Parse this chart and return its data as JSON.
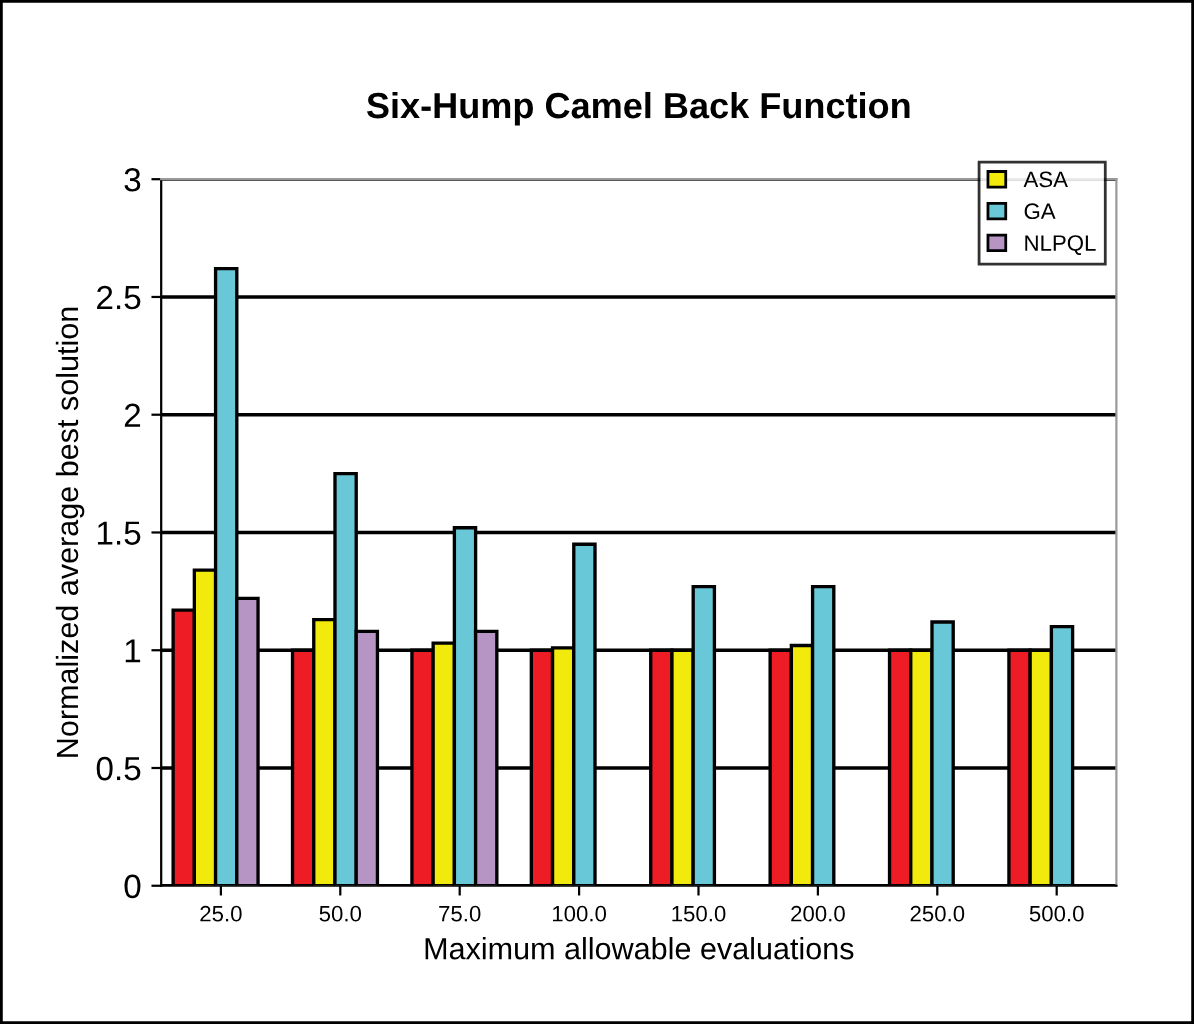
{
  "chart_data": {
    "type": "bar",
    "title": "Six-Hump Camel Back Function",
    "xlabel": "Maximum allowable evaluations",
    "ylabel": "Normalized average best solution",
    "categories": [
      "25.0",
      "50.0",
      "75.0",
      "100.0",
      "150.0",
      "200.0",
      "250.0",
      "500.0"
    ],
    "series": [
      {
        "color": "#ee1c25",
        "values": [
          1.17,
          1.0,
          1.0,
          1.0,
          1.0,
          1.0,
          1.0,
          1.0
        ]
      },
      {
        "name": "ASA",
        "color": "#f2ea0c",
        "values": [
          1.34,
          1.13,
          1.03,
          1.01,
          1.0,
          1.02,
          1.0,
          1.0
        ]
      },
      {
        "name": "GA",
        "color": "#68c8d8",
        "values": [
          2.62,
          1.75,
          1.52,
          1.45,
          1.27,
          1.27,
          1.12,
          1.1
        ]
      },
      {
        "name": "NLPQL",
        "color": "#b695c5",
        "values": [
          1.22,
          1.08,
          1.08,
          null,
          null,
          null,
          null,
          null
        ]
      }
    ],
    "ylim": [
      0,
      3
    ],
    "yticks": [
      0,
      0.5,
      1,
      1.5,
      2,
      2.5,
      3
    ],
    "grid": "y",
    "legend": "top right"
  }
}
